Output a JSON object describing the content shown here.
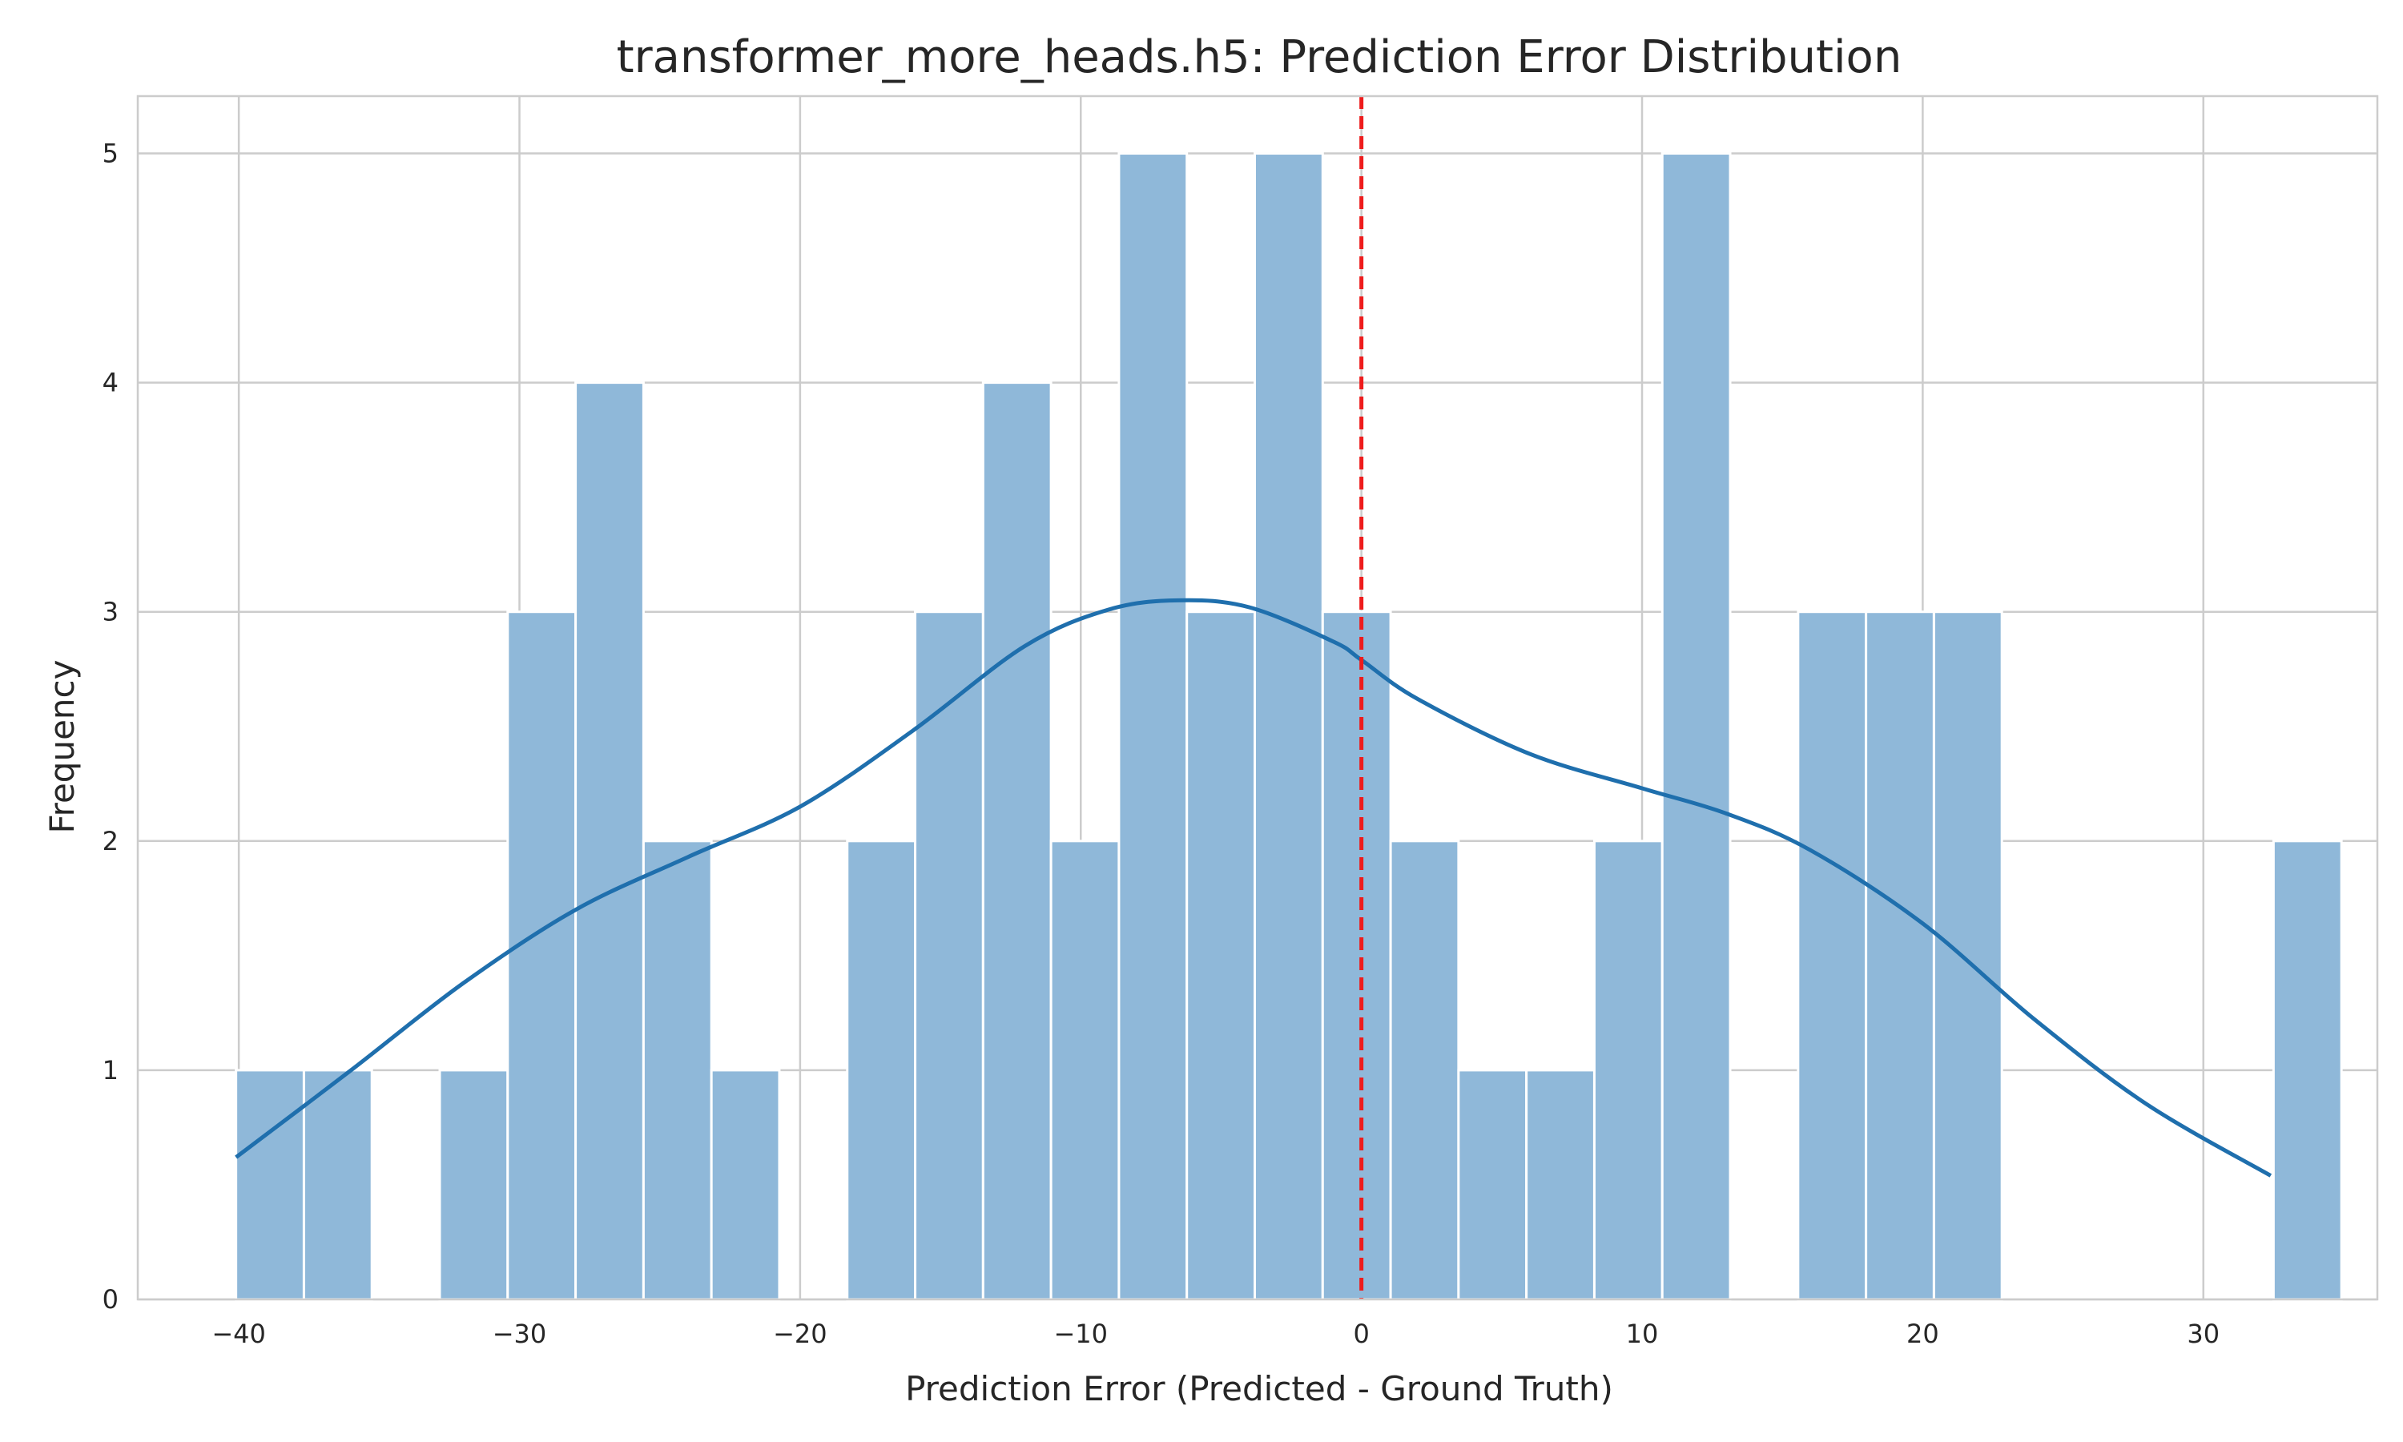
{
  "chart_data": {
    "type": "bar",
    "title": "transformer_more_heads.h5: Prediction Error Distribution",
    "xlabel": "Prediction Error (Predicted - Ground Truth)",
    "ylabel": "Frequency",
    "xlim": [
      -43.6,
      36.2
    ],
    "ylim": [
      0,
      5.25
    ],
    "xticks": [
      -40,
      -30,
      -20,
      -10,
      0,
      10,
      20,
      30
    ],
    "xtick_labels": [
      "−40",
      "−30",
      "−20",
      "−10",
      "0",
      "10",
      "20",
      "30"
    ],
    "yticks": [
      0,
      1,
      2,
      3,
      4,
      5
    ],
    "ytick_labels": [
      "0",
      "1",
      "2",
      "3",
      "4",
      "5"
    ],
    "grid": true,
    "bin_start": -40.1,
    "bin_width": 2.42,
    "bin_counts": [
      1,
      1,
      0,
      1,
      3,
      4,
      2,
      1,
      0,
      2,
      3,
      4,
      2,
      5,
      3,
      5,
      3,
      2,
      1,
      1,
      2,
      5,
      0,
      3,
      3,
      3,
      0,
      0,
      0,
      0,
      2
    ],
    "kde": {
      "x": [
        -40.1,
        -36,
        -32,
        -28,
        -24,
        -20,
        -16,
        -12,
        -9,
        -6.5,
        -4,
        -1,
        0,
        2,
        6,
        10,
        13,
        16,
        20,
        24,
        28,
        32.4
      ],
      "y": [
        0.62,
        1.0,
        1.38,
        1.7,
        1.93,
        2.15,
        2.48,
        2.85,
        3.01,
        3.05,
        3.02,
        2.87,
        2.79,
        2.62,
        2.38,
        2.23,
        2.12,
        1.96,
        1.64,
        1.22,
        0.85,
        0.54
      ]
    },
    "reference_line_x": 0,
    "colors": {
      "bar_fill": "#8fb8d9",
      "bar_edge": "#ffffff",
      "kde_line": "#1f6fad",
      "reference_line": "#ee1c1c",
      "grid": "#cccccc",
      "axes_edge": "#cccccc"
    }
  }
}
